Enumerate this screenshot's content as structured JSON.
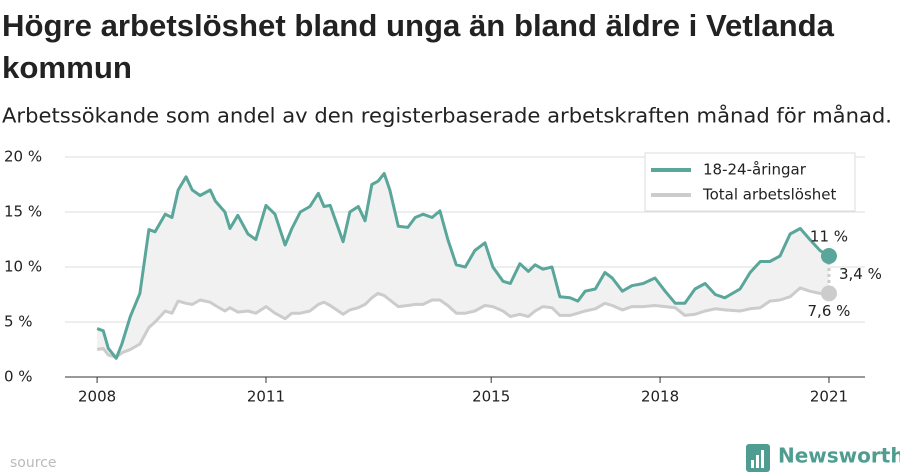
{
  "chart_data": {
    "type": "line",
    "title_lines": [
      "Högre arbetslöshet bland unga än bland äldre i Vetlanda",
      "kommun"
    ],
    "subtitle": "Arbetssökande som andel av den registerbaserade arbetskraften månad för månad.",
    "x": [
      2008.0,
      2008.11,
      2008.2,
      2008.34,
      2008.44,
      2008.59,
      2008.76,
      2008.92,
      2009.03,
      2009.21,
      2009.33,
      2009.44,
      2009.58,
      2009.69,
      2009.83,
      2010.01,
      2010.1,
      2010.27,
      2010.36,
      2010.5,
      2010.68,
      2010.82,
      2011.0,
      2011.16,
      2011.34,
      2011.46,
      2011.61,
      2011.78,
      2011.93,
      2012.03,
      2012.14,
      2012.37,
      2012.49,
      2012.64,
      2012.76,
      2012.88,
      2012.99,
      2013.1,
      2013.2,
      2013.35,
      2013.52,
      2013.65,
      2013.79,
      2013.95,
      2014.09,
      2014.23,
      2014.38,
      2014.54,
      2014.71,
      2014.89,
      2015.03,
      2015.21,
      2015.34,
      2015.51,
      2015.66,
      2015.78,
      2015.92,
      2016.08,
      2016.22,
      2016.4,
      2016.54,
      2016.67,
      2016.85,
      2017.02,
      2017.15,
      2017.33,
      2017.5,
      2017.7,
      2017.91,
      2018.09,
      2018.27,
      2018.44,
      2018.62,
      2018.8,
      2018.98,
      2019.15,
      2019.42,
      2019.6,
      2019.78,
      2019.95,
      2020.13,
      2020.31,
      2020.49,
      2020.66,
      2020.84,
      2021.0
    ],
    "series": [
      {
        "name": "18-24-åringar",
        "color": "#5aa69a",
        "end_label": "11 %",
        "values": [
          4.4,
          4.2,
          2.6,
          1.7,
          3.0,
          5.5,
          7.6,
          13.4,
          13.2,
          14.8,
          14.5,
          17.0,
          18.2,
          17.0,
          16.5,
          17.0,
          16.0,
          15.0,
          13.5,
          14.7,
          13.0,
          12.5,
          15.6,
          14.8,
          12.0,
          13.5,
          15.0,
          15.5,
          16.7,
          15.5,
          15.6,
          12.3,
          15.0,
          15.5,
          14.2,
          17.5,
          17.8,
          18.5,
          17.0,
          13.7,
          13.6,
          14.5,
          14.8,
          14.5,
          15.1,
          12.5,
          10.2,
          10.0,
          11.5,
          12.2,
          10.0,
          8.7,
          8.5,
          10.3,
          9.6,
          10.2,
          9.8,
          10.0,
          7.3,
          7.2,
          6.9,
          7.8,
          8.0,
          9.5,
          9.0,
          7.8,
          8.3,
          8.5,
          9.0,
          7.8,
          6.7,
          6.7,
          8.0,
          8.5,
          7.5,
          7.2,
          8.0,
          9.5,
          10.5,
          10.5,
          11.0,
          13.0,
          13.5,
          12.5,
          11.5,
          11.0
        ]
      },
      {
        "name": "Total arbetslöshet",
        "color": "#cccccc",
        "end_label": "7,6 %",
        "values": [
          2.5,
          2.6,
          2.0,
          1.8,
          2.2,
          2.5,
          3.0,
          4.5,
          5.0,
          6.0,
          5.8,
          6.9,
          6.7,
          6.6,
          7.0,
          6.8,
          6.5,
          6.0,
          6.3,
          5.9,
          6.0,
          5.8,
          6.4,
          5.8,
          5.3,
          5.8,
          5.8,
          6.0,
          6.6,
          6.8,
          6.5,
          5.7,
          6.1,
          6.3,
          6.6,
          7.2,
          7.6,
          7.4,
          7.0,
          6.4,
          6.5,
          6.6,
          6.6,
          7.0,
          7.0,
          6.5,
          5.8,
          5.8,
          6.0,
          6.5,
          6.4,
          6.0,
          5.5,
          5.7,
          5.5,
          6.0,
          6.4,
          6.3,
          5.6,
          5.6,
          5.8,
          6.0,
          6.2,
          6.7,
          6.5,
          6.1,
          6.4,
          6.4,
          6.5,
          6.4,
          6.3,
          5.6,
          5.7,
          6.0,
          6.2,
          6.1,
          6.0,
          6.2,
          6.3,
          6.9,
          7.0,
          7.3,
          8.1,
          7.8,
          7.6,
          7.6
        ]
      }
    ],
    "difference_label": "3,4 %",
    "xlim": [
      2007.43,
      2021.64
    ],
    "xticks": [
      2008,
      2011,
      2015,
      2018,
      2021
    ],
    "ylim": [
      0,
      20
    ],
    "yticks": [
      {
        "value": 0,
        "label": "0 %"
      },
      {
        "value": 5,
        "label": "5 %"
      },
      {
        "value": 10,
        "label": "10 %"
      },
      {
        "value": 15,
        "label": "15 %"
      },
      {
        "value": 20,
        "label": "20 %"
      }
    ],
    "grid": true,
    "legend": "top-right",
    "source": "source",
    "brand": "Newsworthy"
  }
}
